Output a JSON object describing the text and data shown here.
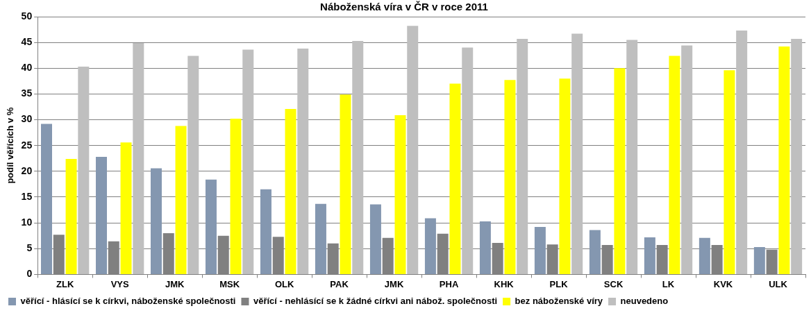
{
  "chart_data": {
    "type": "bar",
    "title": "Náboženská víra v ČR v roce 2011",
    "ylabel": "podíl věřících v %",
    "categories": [
      "ZLK",
      "VYS",
      "JMK",
      "MSK",
      "OLK",
      "PAK",
      "JMK",
      "PHA",
      "KHK",
      "PLK",
      "SCK",
      "LK",
      "KVK",
      "ULK"
    ],
    "series": [
      {
        "name": "věřící - hlásící se k církvi, náboženské společnosti",
        "color": "#8497b0",
        "values": [
          29.2,
          22.8,
          20.6,
          18.4,
          16.5,
          13.7,
          13.6,
          10.9,
          10.3,
          9.2,
          8.6,
          7.2,
          7.1,
          5.3
        ]
      },
      {
        "name": "věřící - nehlásící se k žádné církvi ani nábož. společnosti",
        "color": "#808080",
        "values": [
          7.7,
          6.4,
          8.0,
          7.5,
          7.3,
          6.0,
          7.1,
          7.9,
          6.1,
          5.8,
          5.7,
          5.7,
          5.7,
          4.8
        ]
      },
      {
        "name": "bez náboženské víry",
        "color": "#ffff00",
        "values": [
          22.4,
          25.6,
          28.8,
          30.2,
          32.1,
          34.9,
          30.9,
          37.0,
          37.7,
          38.0,
          40.0,
          42.4,
          39.6,
          44.2
        ]
      },
      {
        "name": "neuvedeno",
        "color": "#bfbfbf",
        "values": [
          40.3,
          44.9,
          42.4,
          43.6,
          43.8,
          45.3,
          48.2,
          44.0,
          45.7,
          46.7,
          45.5,
          44.4,
          47.3,
          45.7
        ]
      }
    ],
    "ylim": [
      0,
      50
    ],
    "yticks": [
      0,
      5,
      10,
      15,
      20,
      25,
      30,
      35,
      40,
      45,
      50
    ],
    "grid": "y",
    "legend": "bottom"
  }
}
